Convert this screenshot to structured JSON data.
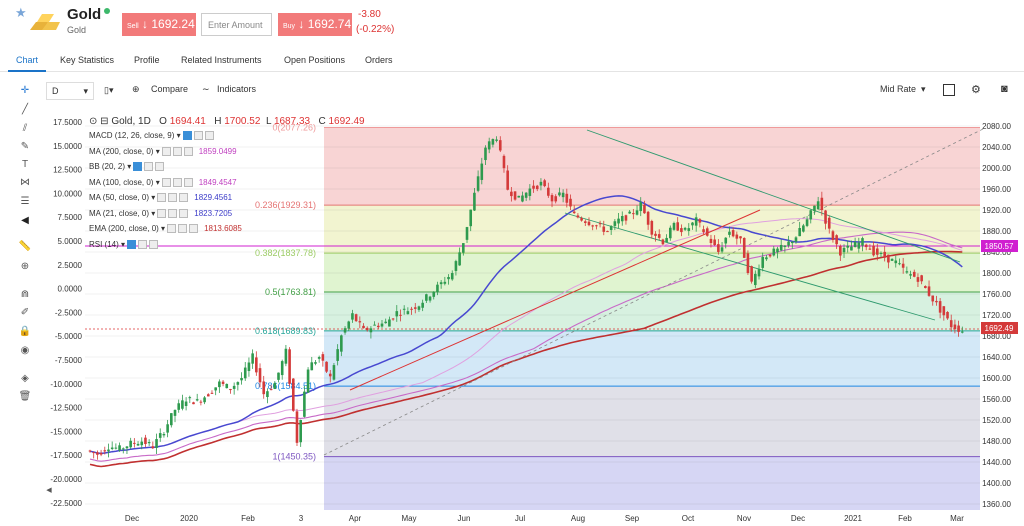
{
  "header": {
    "title": "Gold",
    "subtitle": "Gold",
    "sell_label": "Sell",
    "sell_price": "1692.24",
    "amount_placeholder": "Enter Amount",
    "buy_label": "Buy",
    "buy_price": "1692.74",
    "change": "-3.80",
    "change_pct": "(-0.22%)"
  },
  "tabs": [
    "Chart",
    "Key Statistics",
    "Profile",
    "Related Instruments",
    "Open Positions",
    "Orders"
  ],
  "toolbar": {
    "interval": "D",
    "compare": "Compare",
    "indicators": "Indicators",
    "price_mode": "Mid Rate"
  },
  "ohlc": {
    "symbol": "Gold, 1D",
    "o_label": "O",
    "o": "1694.41",
    "h_label": "H",
    "h": "1700.52",
    "l_label": "L",
    "l": "1687.33",
    "c_label": "C",
    "c": "1692.49"
  },
  "indicators": [
    {
      "label": "MACD (12, 26, close, 9)",
      "value": "",
      "color": "#333"
    },
    {
      "label": "MA (200, close, 0)",
      "value": "1859.0499",
      "color": "#c040c0"
    },
    {
      "label": "BB (20, 2)",
      "value": "",
      "color": "#333"
    },
    {
      "label": "MA (100, close, 0)",
      "value": "1849.4547",
      "color": "#c040c0"
    },
    {
      "label": "MA (50, close, 0)",
      "value": "1829.4561",
      "color": "#3a3ac8"
    },
    {
      "label": "MA (21, close, 0)",
      "value": "1823.7205",
      "color": "#3a3ac8"
    },
    {
      "label": "EMA (200, close, 0)",
      "value": "1813.6085",
      "color": "#c03030"
    },
    {
      "label": "RSI (14)",
      "value": "",
      "color": "#333"
    }
  ],
  "chart_data": {
    "type": "candlestick",
    "right_axis": [
      "2080.00",
      "2040.00",
      "2000.00",
      "1960.00",
      "1920.00",
      "1880.00",
      "1840.00",
      "1800.00",
      "1760.00",
      "1720.00",
      "1680.00",
      "1640.00",
      "1600.00",
      "1560.00",
      "1520.00",
      "1480.00",
      "1440.00",
      "1400.00",
      "1360.00"
    ],
    "left_axis": [
      "17.5000",
      "15.0000",
      "12.5000",
      "10.0000",
      "7.5000",
      "5.0000",
      "2.5000",
      "0.0000",
      "-2.5000",
      "-5.0000",
      "-7.5000",
      "-10.0000",
      "-12.5000",
      "-15.0000",
      "-17.5000",
      "-20.0000",
      "-22.5000"
    ],
    "x_labels": [
      "Dec",
      "2020",
      "Feb",
      "3",
      "Apr",
      "May",
      "Jun",
      "Jul",
      "Aug",
      "Sep",
      "Oct",
      "Nov",
      "Dec",
      "2021",
      "Feb",
      "Mar"
    ],
    "fib_levels": [
      {
        "label": "0(2077.26)",
        "value": 2077.26,
        "color": "#ef9a9a"
      },
      {
        "label": "0.236(1929.31)",
        "value": 1929.31,
        "color": "#e57373"
      },
      {
        "label": "0.382(1837.78)",
        "value": 1837.78,
        "color": "#9ccc65"
      },
      {
        "label": "0.5(1763.81)",
        "value": 1763.81,
        "color": "#43a047"
      },
      {
        "label": "0.618(1689.83)",
        "value": 1689.83,
        "color": "#26a69a"
      },
      {
        "label": "0.786(1584.51)",
        "value": 1584.51,
        "color": "#1e88e5"
      },
      {
        "label": "1(1450.35)",
        "value": 1450.35,
        "color": "#7e57c2"
      }
    ],
    "price_tag_upper": "1850.57",
    "price_tag_last": "1692.49",
    "close_path": [
      1462,
      1455,
      1470,
      1465,
      1475,
      1480,
      1470,
      1500,
      1540,
      1560,
      1555,
      1570,
      1590,
      1580,
      1600,
      1640,
      1570,
      1590,
      1650,
      1480,
      1620,
      1640,
      1600,
      1680,
      1720,
      1690,
      1700,
      1705,
      1725,
      1730,
      1740,
      1760,
      1780,
      1800,
      1860,
      1950,
      2040,
      2060,
      1960,
      1940,
      1960,
      1970,
      1940,
      1950,
      1910,
      1900,
      1890,
      1880,
      1900,
      1910,
      1930,
      1880,
      1860,
      1890,
      1880,
      1900,
      1870,
      1840,
      1880,
      1860,
      1780,
      1830,
      1840,
      1850,
      1870,
      1900,
      1940,
      1880,
      1840,
      1850,
      1860,
      1840,
      1830,
      1820,
      1800,
      1790,
      1760,
      1730,
      1700,
      1690
    ]
  }
}
